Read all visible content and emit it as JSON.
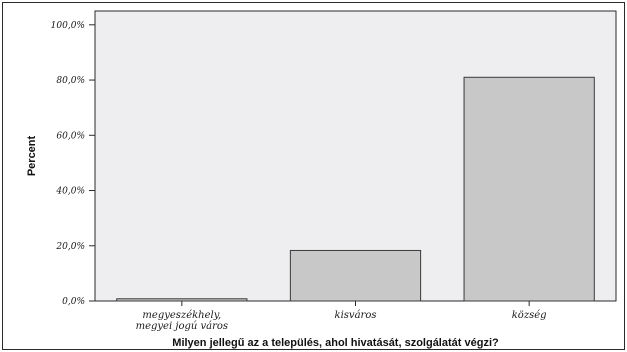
{
  "chart_data": {
    "type": "bar",
    "categories": [
      [
        "megyeszékhely,",
        "megyei jogú város"
      ],
      [
        "kisváros"
      ],
      [
        "község"
      ]
    ],
    "values": [
      0.8,
      18.3,
      81.0
    ],
    "xlabel": "Milyen jellegű az a település, ahol hivatását, szolgálatát végzi?",
    "ylabel": "Percent",
    "ylim": [
      0,
      105
    ],
    "yticks": [
      0,
      20,
      40,
      60,
      80,
      100
    ],
    "ytick_labels": [
      "0,0%",
      "20,0%",
      "40,0%",
      "60,0%",
      "80,0%",
      "100,0%"
    ],
    "grid": false,
    "colors": {
      "plot_background": "#eeeef1",
      "bar_fill": "#c8c8c8",
      "bar_stroke": "#3a3a3a",
      "axis": "#2a2a2a"
    }
  }
}
